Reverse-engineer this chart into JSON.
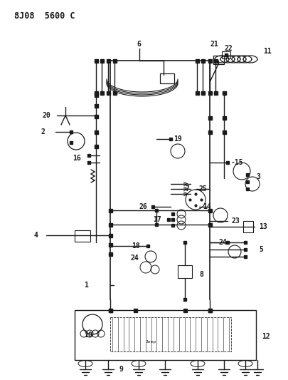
{
  "title": "8J08  5600 C",
  "bg_color": "#ffffff",
  "line_color": "#1a1a1a",
  "fig_width": 4.05,
  "fig_height": 5.33,
  "dpi": 100
}
